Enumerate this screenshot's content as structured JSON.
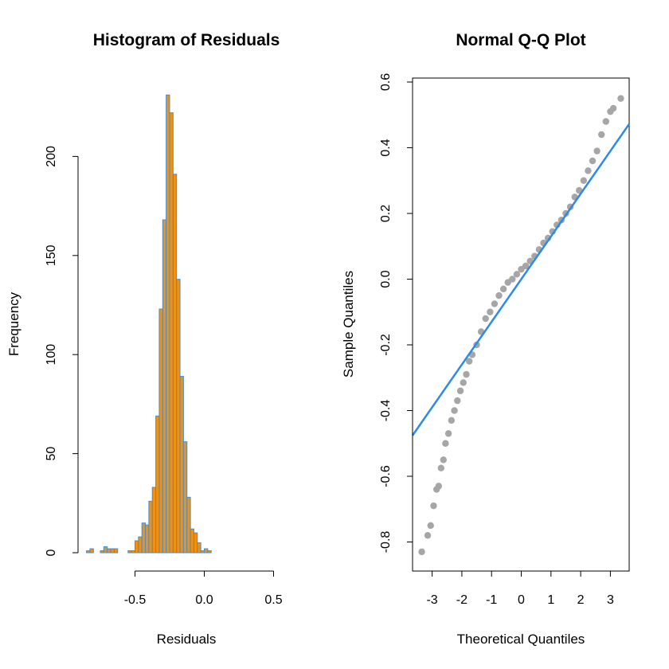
{
  "chart_data": [
    {
      "type": "bar",
      "title": "Histogram of Residuals",
      "xlabel": "Residuals",
      "ylabel": "Frequency",
      "xlim": [
        -0.86,
        0.6
      ],
      "ylim": [
        0,
        230
      ],
      "xticks": [
        -0.5,
        0.0,
        0.5
      ],
      "xtick_labels": [
        "-0.5",
        "0.0",
        "0.5"
      ],
      "yticks": [
        0,
        50,
        100,
        150,
        200
      ],
      "ytick_labels": [
        "0",
        "50",
        "100",
        "150",
        "200"
      ],
      "bin_width": 0.025,
      "bins": [
        {
          "x0": -0.85,
          "count": 1
        },
        {
          "x0": -0.825,
          "count": 2
        },
        {
          "x0": -0.8,
          "count": 0
        },
        {
          "x0": -0.775,
          "count": 0
        },
        {
          "x0": -0.75,
          "count": 1
        },
        {
          "x0": -0.725,
          "count": 3
        },
        {
          "x0": -0.7,
          "count": 2
        },
        {
          "x0": -0.675,
          "count": 2
        },
        {
          "x0": -0.65,
          "count": 2
        },
        {
          "x0": -0.625,
          "count": 0
        },
        {
          "x0": -0.6,
          "count": 0
        },
        {
          "x0": -0.575,
          "count": 0
        },
        {
          "x0": -0.55,
          "count": 1
        },
        {
          "x0": -0.525,
          "count": 1
        },
        {
          "x0": -0.5,
          "count": 6
        },
        {
          "x0": -0.475,
          "count": 8
        },
        {
          "x0": -0.45,
          "count": 15
        },
        {
          "x0": -0.425,
          "count": 14
        },
        {
          "x0": -0.4,
          "count": 26
        },
        {
          "x0": -0.375,
          "count": 33
        },
        {
          "x0": -0.35,
          "count": 69
        },
        {
          "x0": -0.325,
          "count": 123
        },
        {
          "x0": -0.3,
          "count": 168
        },
        {
          "x0": -0.275,
          "count": 231
        },
        {
          "x0": -0.25,
          "count": 222
        },
        {
          "x0": -0.225,
          "count": 191
        },
        {
          "x0": -0.2,
          "count": 138
        },
        {
          "x0": -0.175,
          "count": 89
        },
        {
          "x0": -0.15,
          "count": 56
        },
        {
          "x0": -0.125,
          "count": 28
        },
        {
          "x0": -0.1,
          "count": 12
        },
        {
          "x0": -0.075,
          "count": 10
        },
        {
          "x0": -0.05,
          "count": 5
        },
        {
          "x0": -0.025,
          "count": 1
        },
        {
          "x0": 0.0,
          "count": 2
        },
        {
          "x0": 0.025,
          "count": 1
        }
      ],
      "bar_fill": "#f5900e",
      "bar_border": "#3f8fd6"
    },
    {
      "type": "scatter",
      "title": "Normal Q-Q Plot",
      "xlabel": "Theoretical Quantiles",
      "ylabel": "Sample Quantiles",
      "xlim": [
        -3.5,
        3.6
      ],
      "ylim": [
        -0.88,
        0.62
      ],
      "xticks": [
        -3,
        -2,
        -1,
        0,
        1,
        2,
        3
      ],
      "xtick_labels": [
        "-3",
        "-2",
        "-1",
        "0",
        "1",
        "2",
        "3"
      ],
      "yticks": [
        -0.8,
        -0.6,
        -0.4,
        -0.2,
        0.0,
        0.2,
        0.4,
        0.6
      ],
      "ytick_labels": [
        "-0.8",
        "-0.6",
        "-0.4",
        "-0.2",
        "0.0",
        "0.2",
        "0.4",
        "0.6"
      ],
      "points": [
        [
          -3.35,
          -0.83
        ],
        [
          -3.15,
          -0.78
        ],
        [
          -3.05,
          -0.75
        ],
        [
          -2.95,
          -0.69
        ],
        [
          -2.85,
          -0.64
        ],
        [
          -2.78,
          -0.63
        ],
        [
          -2.7,
          -0.575
        ],
        [
          -2.62,
          -0.55
        ],
        [
          -2.55,
          -0.5
        ],
        [
          -2.45,
          -0.47
        ],
        [
          -2.35,
          -0.43
        ],
        [
          -2.25,
          -0.4
        ],
        [
          -2.15,
          -0.37
        ],
        [
          -2.05,
          -0.34
        ],
        [
          -1.95,
          -0.315
        ],
        [
          -1.85,
          -0.29
        ],
        [
          -1.75,
          -0.25
        ],
        [
          -1.65,
          -0.23
        ],
        [
          -1.5,
          -0.2
        ],
        [
          -1.35,
          -0.16
        ],
        [
          -1.2,
          -0.12
        ],
        [
          -1.05,
          -0.1
        ],
        [
          -0.9,
          -0.075
        ],
        [
          -0.75,
          -0.05
        ],
        [
          -0.6,
          -0.03
        ],
        [
          -0.45,
          -0.01
        ],
        [
          -0.3,
          0.0
        ],
        [
          -0.15,
          0.015
        ],
        [
          0.0,
          0.03
        ],
        [
          0.15,
          0.04
        ],
        [
          0.3,
          0.055
        ],
        [
          0.45,
          0.07
        ],
        [
          0.6,
          0.09
        ],
        [
          0.75,
          0.11
        ],
        [
          0.9,
          0.125
        ],
        [
          1.05,
          0.145
        ],
        [
          1.2,
          0.165
        ],
        [
          1.35,
          0.18
        ],
        [
          1.5,
          0.2
        ],
        [
          1.65,
          0.22
        ],
        [
          1.8,
          0.25
        ],
        [
          1.95,
          0.27
        ],
        [
          2.1,
          0.3
        ],
        [
          2.25,
          0.33
        ],
        [
          2.4,
          0.36
        ],
        [
          2.55,
          0.39
        ],
        [
          2.7,
          0.44
        ],
        [
          2.85,
          0.48
        ],
        [
          3.0,
          0.51
        ],
        [
          3.1,
          0.52
        ],
        [
          3.35,
          0.55
        ]
      ],
      "qq_line": {
        "slope": 0.13,
        "intercept": 0.0
      },
      "point_color": "#a6a6a6",
      "line_color": "#2b8be6"
    }
  ]
}
